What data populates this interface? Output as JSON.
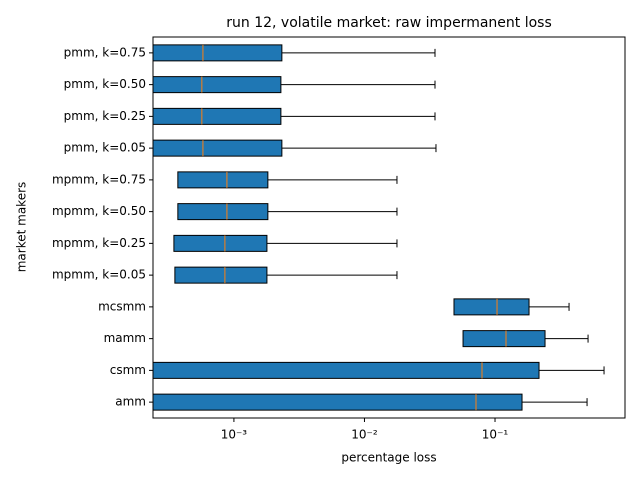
{
  "chart_data": {
    "type": "box",
    "orient": "horizontal",
    "title": "run 12, volatile market: raw impermanent loss",
    "xlabel": "percentage loss",
    "ylabel": "market makers",
    "xscale": "log",
    "xlim": [
      0.00024,
      0.99
    ],
    "xticks": [
      {
        "value": 0.001,
        "label": "10⁻³"
      },
      {
        "value": 0.01,
        "label": "10⁻²"
      },
      {
        "value": 0.1,
        "label": "10⁻¹"
      }
    ],
    "color": "#1f77b4",
    "median_color": "#ff7f0e",
    "categories": [
      "amm",
      "csmm",
      "mamm",
      "mcsmm",
      "mpmm, k=0.05",
      "mpmm, k=0.25",
      "mpmm, k=0.50",
      "mpmm, k=0.75",
      "pmm, k=0.05",
      "pmm, k=0.25",
      "pmm, k=0.50",
      "pmm, k=0.75"
    ],
    "boxes": [
      {
        "whislo": 0,
        "q1": 0,
        "med": 0.0715,
        "q3": 0.161,
        "whishi": 0.507
      },
      {
        "whislo": 0,
        "q1": 0,
        "med": 0.0795,
        "q3": 0.2173,
        "whishi": 0.684
      },
      {
        "whislo": 0,
        "q1": 0.0569,
        "med": 0.1214,
        "q3": 0.2416,
        "whishi": 0.516
      },
      {
        "whislo": 0,
        "q1": 0.0485,
        "med": 0.1036,
        "q3": 0.1822,
        "whishi": 0.369
      },
      {
        "whislo": 0,
        "q1": 0.000353,
        "med": 0.000853,
        "q3": 0.00179,
        "whishi": 0.01774
      },
      {
        "whislo": 0,
        "q1": 0.000347,
        "med": 0.000853,
        "q3": 0.00179,
        "whishi": 0.01774
      },
      {
        "whislo": 0,
        "q1": 0.000372,
        "med": 0.000884,
        "q3": 0.00182,
        "whishi": 0.01774
      },
      {
        "whislo": 0,
        "q1": 0.000372,
        "med": 0.000884,
        "q3": 0.00182,
        "whishi": 0.01774
      },
      {
        "whislo": 0,
        "q1": 0,
        "med": 0.000579,
        "q3": 0.00233,
        "whishi": 0.0353
      },
      {
        "whislo": 0,
        "q1": 0,
        "med": 0.000568,
        "q3": 0.00229,
        "whishi": 0.0347
      },
      {
        "whislo": 0,
        "q1": 0,
        "med": 0.000568,
        "q3": 0.00229,
        "whishi": 0.0347
      },
      {
        "whislo": 0,
        "q1": 0,
        "med": 0.000579,
        "q3": 0.00233,
        "whishi": 0.0347
      }
    ]
  }
}
